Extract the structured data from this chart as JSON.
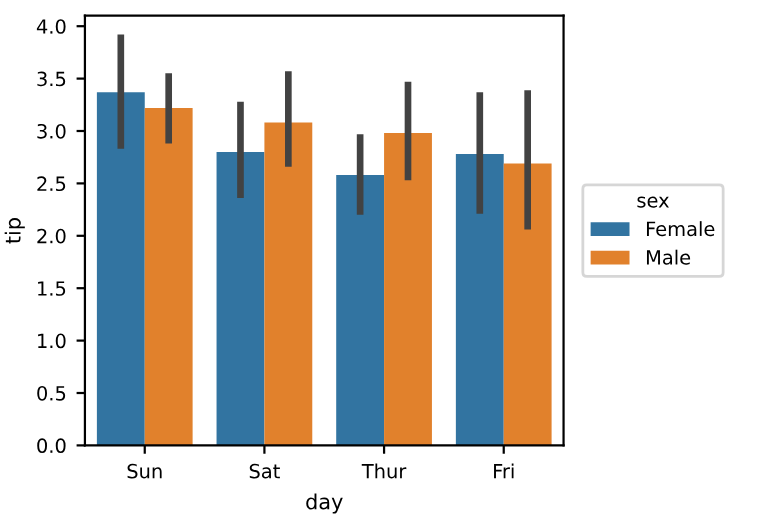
{
  "chart_data": {
    "type": "bar",
    "xlabel": "day",
    "ylabel": "tip",
    "legend_title": "sex",
    "categories": [
      "Sun",
      "Sat",
      "Thur",
      "Fri"
    ],
    "series": [
      {
        "name": "Female",
        "color": "#3274a1",
        "values": [
          3.37,
          2.8,
          2.58,
          2.78
        ],
        "errors": [
          [
            2.83,
            3.92
          ],
          [
            2.36,
            3.28
          ],
          [
            2.2,
            2.97
          ],
          [
            2.21,
            3.37
          ]
        ]
      },
      {
        "name": "Male",
        "color": "#e1812c",
        "values": [
          3.22,
          3.08,
          2.98,
          2.69
        ],
        "errors": [
          [
            2.88,
            3.55
          ],
          [
            2.66,
            3.57
          ],
          [
            2.53,
            3.47
          ],
          [
            2.06,
            3.39
          ]
        ]
      }
    ],
    "ylim": [
      0,
      4.1
    ],
    "yticks": [
      {
        "value": 0,
        "label": "0.0"
      },
      0.5,
      {
        "value": 1,
        "label": "1.0"
      },
      1.5,
      {
        "value": 2,
        "label": "2.0"
      },
      2.5,
      {
        "value": 3,
        "label": "3.0"
      },
      3.5,
      {
        "value": 4,
        "label": "4.0"
      }
    ],
    "grid": false,
    "legend": "right"
  }
}
